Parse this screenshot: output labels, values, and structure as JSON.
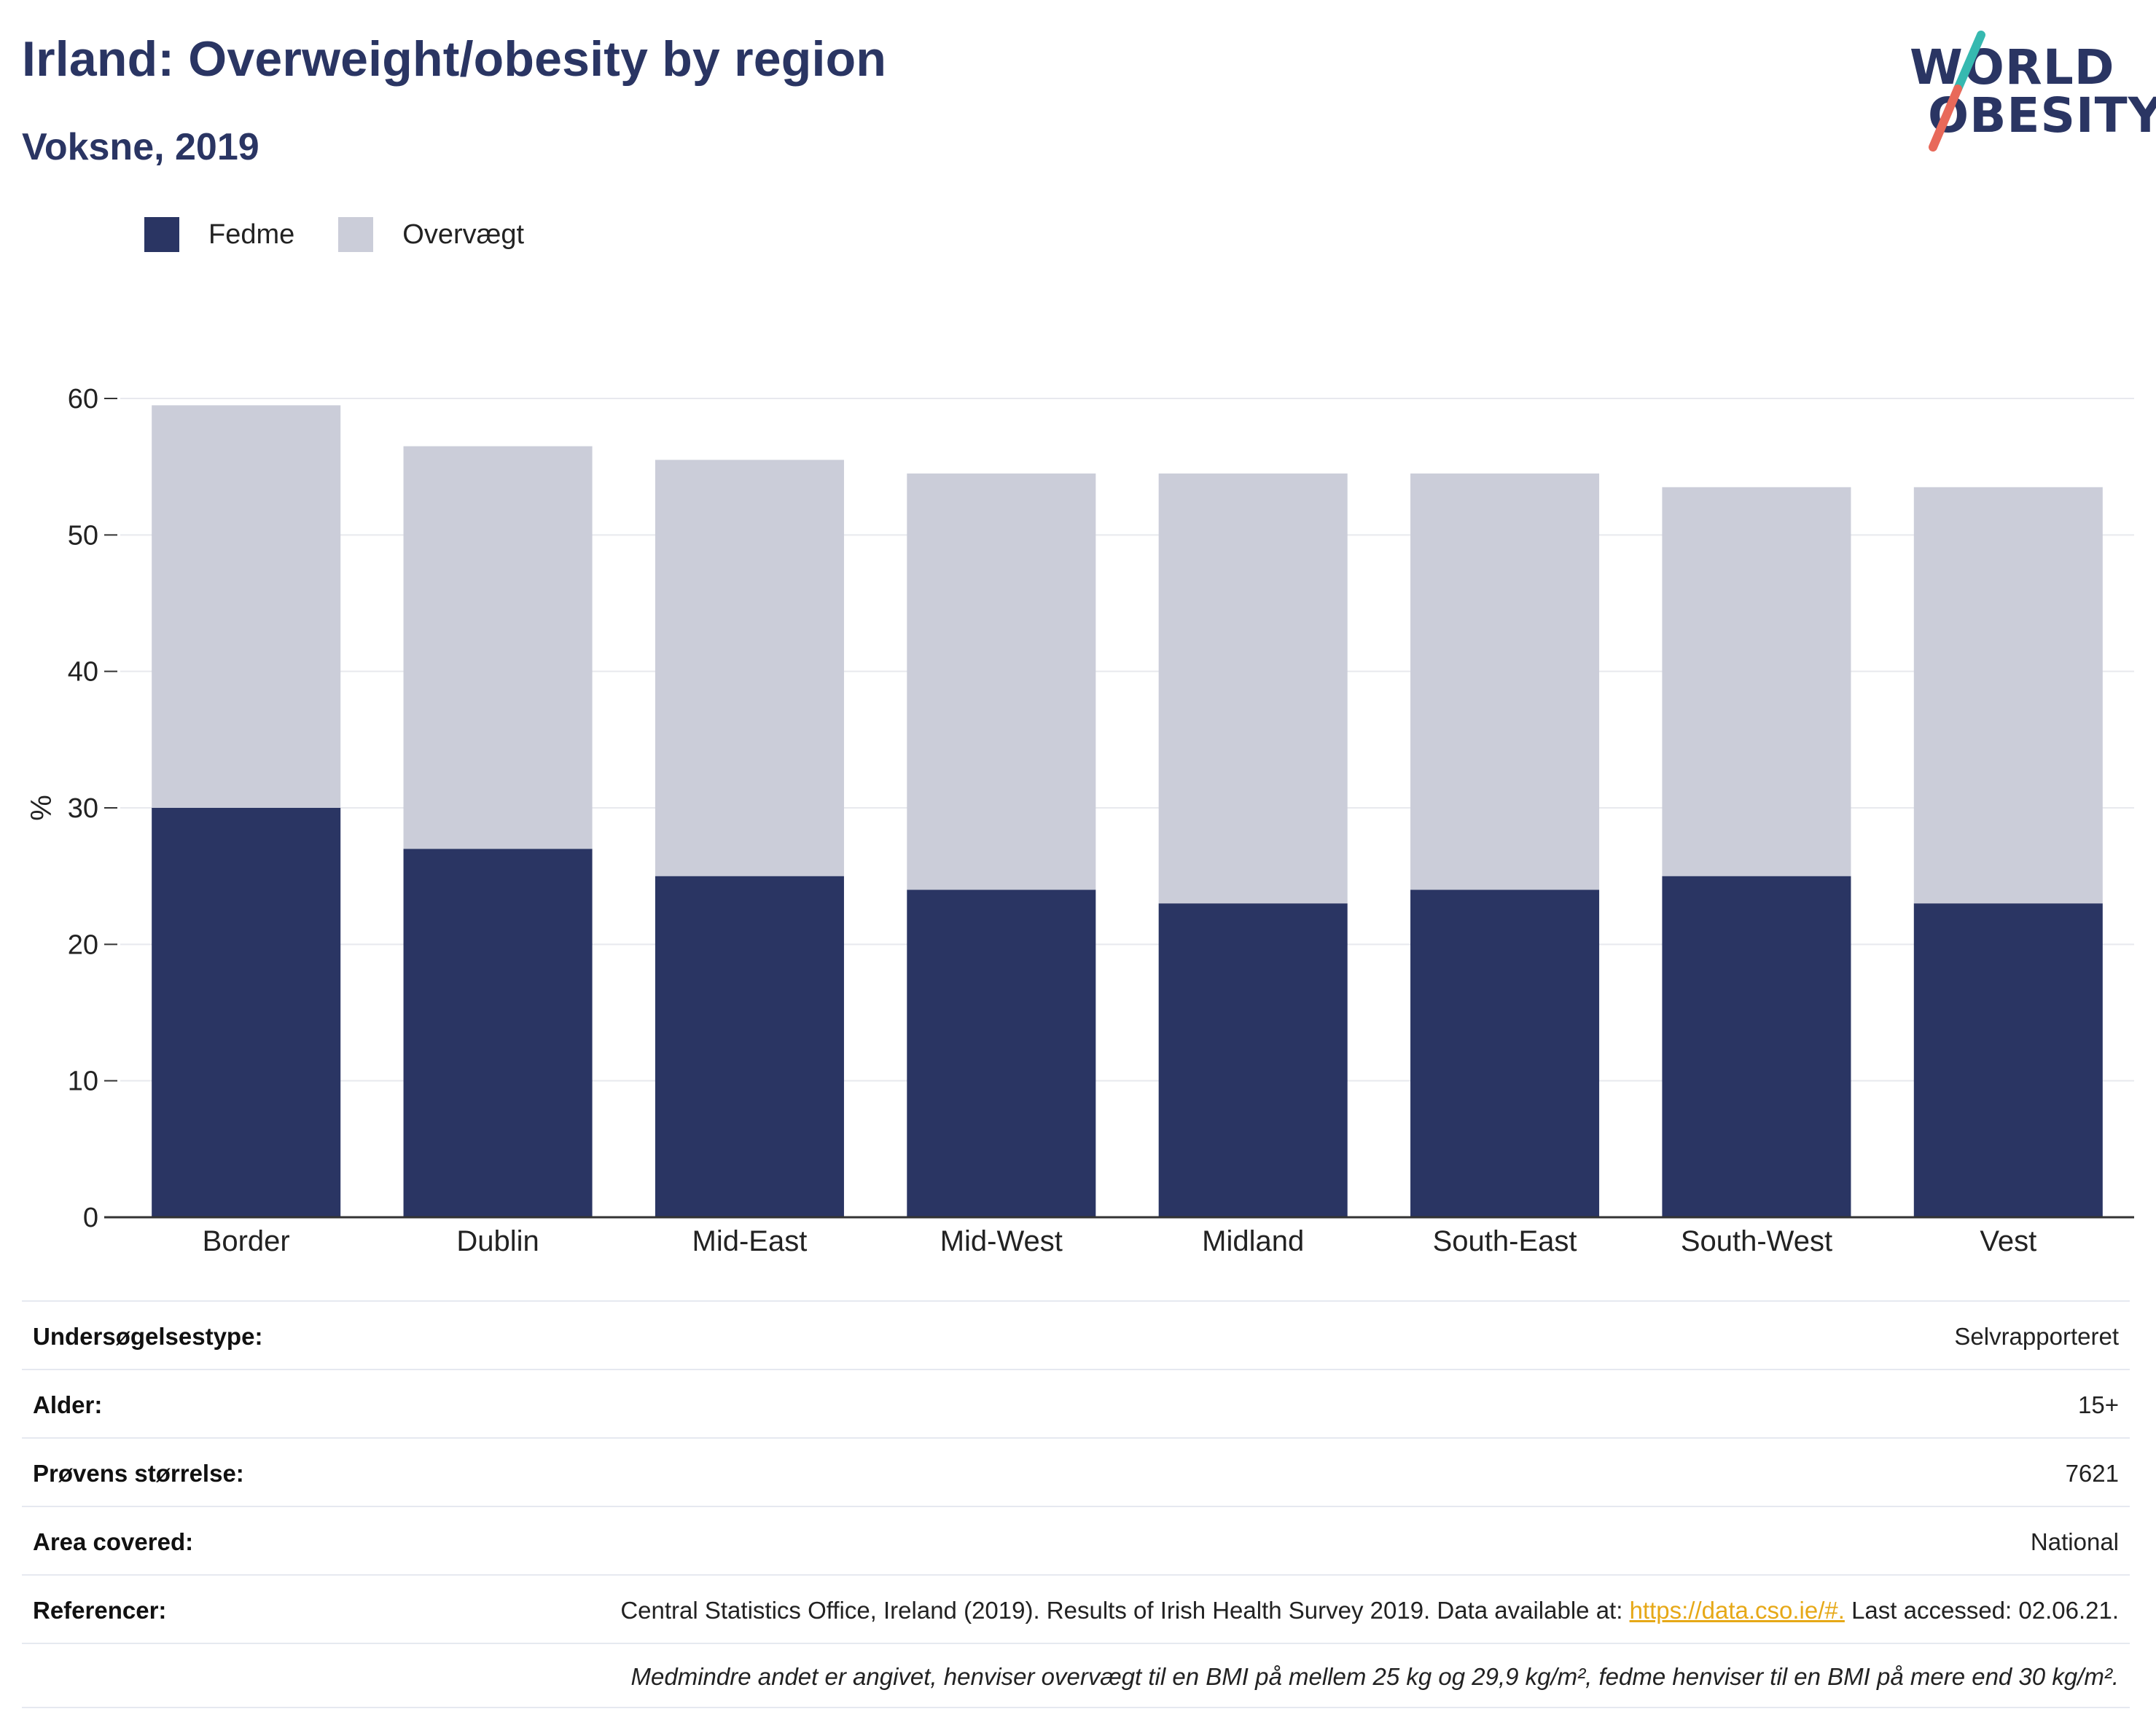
{
  "header": {
    "title": "Irland: Overweight/obesity by region",
    "subtitle": "Voksne, 2019"
  },
  "logo": {
    "line1": "WORLD",
    "line2": "OBESITY",
    "accent_colors": [
      "#36b9b0",
      "#e8695a"
    ]
  },
  "legend": {
    "items": [
      {
        "label": "Fedme",
        "color": "#2a3563"
      },
      {
        "label": "Overvægt",
        "color": "#cbcdd9"
      }
    ]
  },
  "chart_data": {
    "type": "bar",
    "stacked": true,
    "title": "Irland: Overweight/obesity by region",
    "subtitle": "Voksne, 2019",
    "ylabel": "%",
    "xlabel": "",
    "ylim": [
      0,
      60
    ],
    "yticks": [
      0,
      10,
      20,
      30,
      40,
      50,
      60
    ],
    "grid": true,
    "legend_position": "top-left",
    "categories": [
      "Border",
      "Dublin",
      "Mid-East",
      "Mid-West",
      "Midland",
      "South-East",
      "South-West",
      "Vest"
    ],
    "series": [
      {
        "name": "Fedme",
        "color": "#2a3563",
        "values": [
          30,
          27,
          25,
          24,
          23,
          24,
          25,
          23
        ]
      },
      {
        "name": "Overvægt",
        "color": "#cbcdd9",
        "values": [
          29.5,
          29.5,
          30.5,
          30.5,
          31.5,
          30.5,
          28.5,
          30.5
        ]
      }
    ]
  },
  "info": {
    "rows": [
      {
        "label": "Undersøgelsestype:",
        "value": "Selvrapporteret"
      },
      {
        "label": "Alder:",
        "value": "15+"
      },
      {
        "label": "Prøvens størrelse:",
        "value": "7621"
      },
      {
        "label": "Area covered:",
        "value": "National"
      }
    ],
    "references": {
      "label": "Referencer:",
      "text_before": "Central Statistics Office, Ireland (2019). Results of Irish Health Survey 2019. Data available at: ",
      "link": "https://data.cso.ie/#.",
      "text_after": " Last accessed: 02.06.21."
    },
    "footnote": "Medmindre andet er angivet, henviser overvægt til en BMI på mellem 25 kg og 29,9 kg/m², fedme henviser til en BMI på mere end 30 kg/m²."
  }
}
